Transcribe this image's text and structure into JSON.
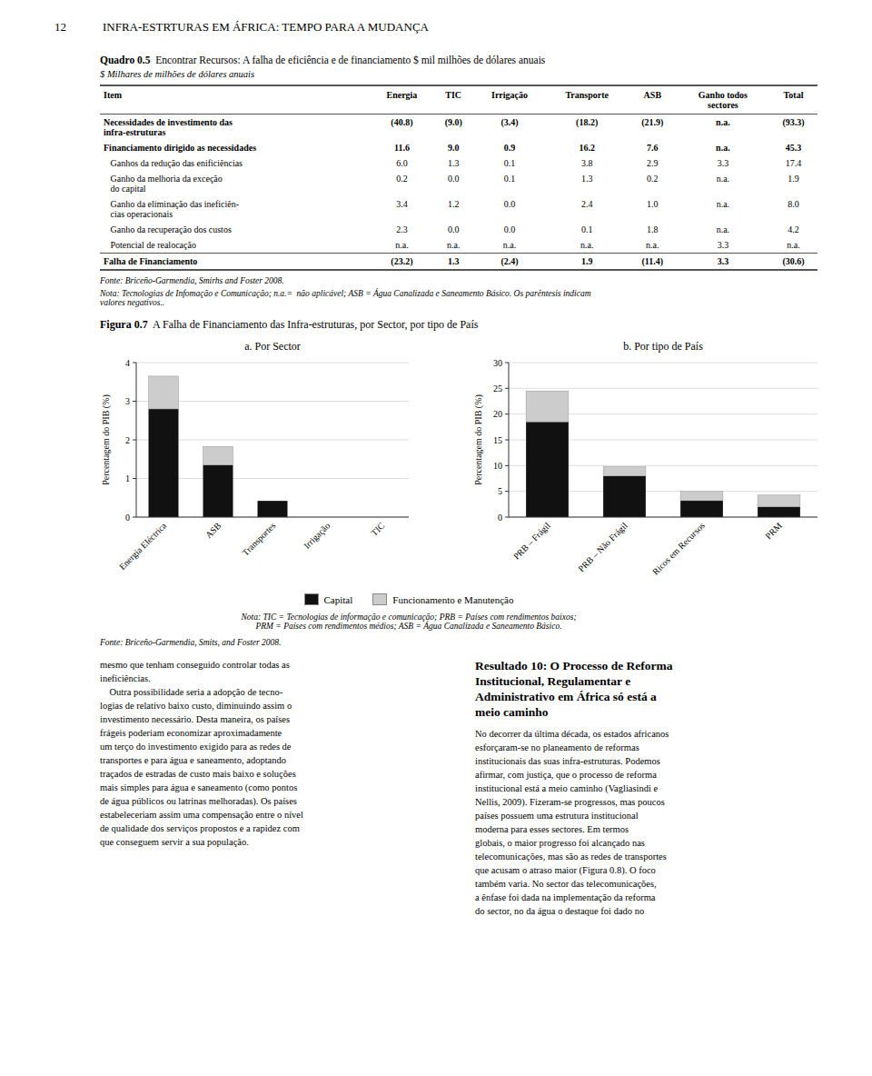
{
  "page_number": "12",
  "header": "INFRA-ESTRTURAS EM ÁFRICA: TEMPO PARA A MUDANÇA",
  "quadro_title_bold": "Quadro 0.5",
  "quadro_title_rest": "  Encontrar Recursos: A falha de eficiência e de financiamento $ mil milhões de dólares anuais",
  "quadro_subtitle": "$ Milhares de milhões de dólares anuais",
  "table": {
    "columns": [
      "Item",
      "Energia",
      "TIC",
      "Irrigação",
      "Transporte",
      "ASB",
      "Ganho todos\nsectores",
      "Total"
    ],
    "rows": [
      [
        "Necessidades de investimento das\ninfra-estruturas",
        "(40.8)",
        "(9.0)",
        "(3.4)",
        "(18.2)",
        "(21.9)",
        "n.a.",
        "(93.3)"
      ],
      [
        "Financiamento dirigido as necessidades",
        "11.6",
        "9.0",
        "0.9",
        "16.2",
        "7.6",
        "n.a.",
        "45.3"
      ],
      [
        "   Ganhos da redução das enificiências",
        "6.0",
        "1.3",
        "0.1",
        "3.8",
        "2.9",
        "3.3",
        "17.4"
      ],
      [
        "   Ganho da melhoria da exceção\n   do capital",
        "0.2",
        "0.0",
        "0.1",
        "1.3",
        "0.2",
        "n.a.",
        "1.9"
      ],
      [
        "   Ganho da eliminação das ineficiên-\n   cias operacionais",
        "3.4",
        "1.2",
        "0.0",
        "2.4",
        "1.0",
        "n.a.",
        "8.0"
      ],
      [
        "   Ganho da recuperação dos custos",
        "2.3",
        "0.0",
        "0.0",
        "0.1",
        "1.8",
        "n.a.",
        "4.2"
      ],
      [
        "   Potencial de realocação",
        "n.a.",
        "n.a.",
        "n.a.",
        "n.a.",
        "n.a.",
        "3.3",
        "n.a."
      ],
      [
        "Falha de Financiamento",
        "(23.2)",
        "1.3",
        "(2.4)",
        "1.9",
        "(11.4)",
        "3.3",
        "(30.6)"
      ]
    ],
    "bold_rows": [
      0,
      1,
      7
    ]
  },
  "fonte_text": "Fonte: Briceño-Garmendia, Smirhs and Foster 2008.",
  "nota_text": "Nota: Tecnologias de Infomação e Comunicação; n.a.=  não aplicável; ASB = Água Canalizada e Saneamento Básico. Os parêntesis indicam\nvalores negativos..",
  "figura_bold": "Figura 0.7",
  "figura_rest": "  A Falha de Financiamento das Infra-estruturas, por Sector, por tipo de País",
  "chart_data": [
    {
      "type": "bar",
      "stacked": true,
      "title": "a. Por Sector",
      "ylabel": "Percentagem do PIB (%)",
      "categories": [
        "Energia Eléctrica",
        "ASB",
        "Transportes",
        "Irrigação",
        "TIC"
      ],
      "series": [
        {
          "name": "Capital",
          "color": "#111111",
          "values": [
            2.8,
            1.35,
            0.42,
            0.0,
            0.0
          ]
        },
        {
          "name": "Funcionamento e Manutenção",
          "color": "#cccccc",
          "values": [
            0.85,
            0.48,
            0.0,
            0.0,
            0.0
          ]
        }
      ],
      "ylim": [
        0,
        4
      ],
      "yticks": [
        0,
        1,
        2,
        3,
        4
      ],
      "grid": true,
      "legend": "bottom"
    },
    {
      "type": "bar",
      "stacked": true,
      "title": "b. Por tipo de País",
      "ylabel": "Percentagem do PIB (%)",
      "categories": [
        "PRB – Frágil",
        "PRB – Não Frágil",
        "Ricos em Recursos",
        "PRM"
      ],
      "series": [
        {
          "name": "Capital",
          "color": "#111111",
          "values": [
            18.5,
            8.0,
            3.2,
            2.0
          ]
        },
        {
          "name": "Funcionamento e Manutenção",
          "color": "#cccccc",
          "values": [
            6.0,
            1.8,
            1.8,
            2.3
          ]
        }
      ],
      "ylim": [
        0,
        30
      ],
      "yticks": [
        0,
        5,
        10,
        15,
        20,
        25,
        30
      ],
      "grid": true,
      "legend": "bottom"
    }
  ],
  "nota2_line1": "Nota: TIC = Tecnologias de informação e comunicação; PRB = Países com rendimentos baixos;",
  "nota2_line2": "PRM = Países com rendimentos médios; ASB = Água Canalizada e Saneamento Básico.",
  "fonte2_text": "Fonte: Briceño-Garmendia, Smits, and Foster 2008.",
  "body_left_1": "mesmo que tenham conseguido controlar todas as",
  "body_left_2": "ineficiências.",
  "body_left_p": "    Outra possibilidade seria a adopção de tecno-\nlogias de relativo baixo custo, diminuindo assim o\ninvestimento necessário. Desta maneira, os países\nfrágeis poderiam economizar aproximadamente\num terço do investimento exigido para as redes de\ntransportes e para água e saneamento, adoptando\ntraçados de estradas de custo mais baixo e soluções\nmais simples para água e saneamento (como pontos\nde água públicos ou latrinas melhoradas). Os países\nestabeleceriam assim uma compensação entre o nível\nde qualidade dos serviços propostos e a rapidez com\nque conseguem servir a sua população.",
  "body_right_title": "Resultado 10: O Processo de Reforma\nInstitucional, Regulamentar e\nAdministrativo em África só está a\nmeio caminho",
  "body_right_p": "No decorrer da última década, os estados africanos\nesforçaram-se no planeamento de reformas\ninstitucionais das suas infra-estruturas. Podemos\nafirmar, com justiça, que o processo de reforma\ninstitucional está a meio caminho (Vagliasindi e\nNellis, 2009). Fizeram-se progressos, mas poucos\npaíses possuem uma estrutura institucional\nmoderna para esses sectores. Em termos\nglobais, o maior progresso foi alcançado nas\ntelecomunicações, mas são as redes de transportes\nque acusam o atraso maior (Figura 0.8). O foco\ntambém varia. No sector das telecomunicações,\na ênfase foi dada na implementação da reforma\ndo sector, no da água o destaque foi dado no"
}
